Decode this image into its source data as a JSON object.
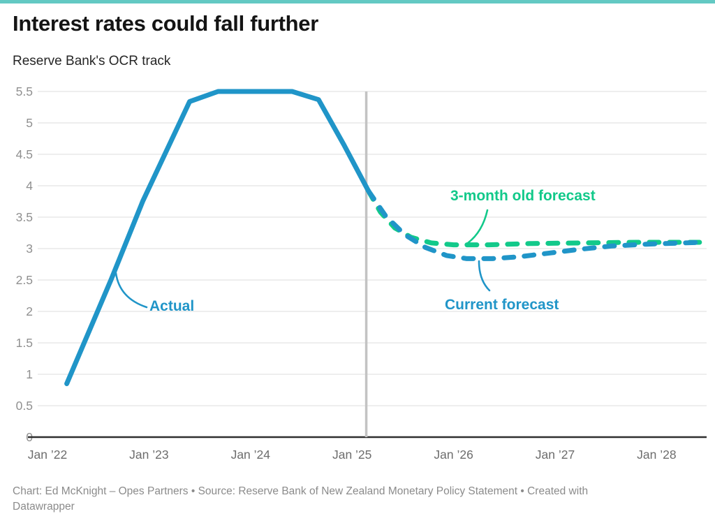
{
  "accent_color": "#63c9c3",
  "header": {
    "title": "Interest rates could fall further",
    "subtitle": "Reserve Bank's OCR track"
  },
  "footer": {
    "attribution": "Chart: Ed McKnight – Opes Partners • Source: Reserve Bank of New Zealand Monetary Policy Statement • Created with Datawrapper"
  },
  "chart_data": {
    "type": "line",
    "title": "Interest rates could fall further",
    "subtitle": "Reserve Bank's OCR track",
    "xlabel": "",
    "ylabel": "",
    "x_unit": "decimal_years",
    "xlim": [
      2021.95,
      2028.55
    ],
    "ylim": [
      0,
      5.5
    ],
    "grid": "horizontal",
    "y_ticks": [
      0,
      0.5,
      1,
      1.5,
      2,
      2.5,
      3,
      3.5,
      4,
      4.5,
      5,
      5.5
    ],
    "x_ticks": [
      {
        "value": 2022,
        "label": "Jan ’22"
      },
      {
        "value": 2023,
        "label": "Jan ’23"
      },
      {
        "value": 2024,
        "label": "Jan ’24"
      },
      {
        "value": 2025,
        "label": "Jan ’25"
      },
      {
        "value": 2026,
        "label": "Jan ’26"
      },
      {
        "value": 2027,
        "label": "Jan ’27"
      },
      {
        "value": 2028,
        "label": "Jan ’28"
      }
    ],
    "forecast_divider_x": 2025.14,
    "series": [
      {
        "name": "Actual",
        "color": "#2095c8",
        "style": "solid",
        "points": [
          [
            2022.19,
            0.85
          ],
          [
            2022.63,
            2.52
          ],
          [
            2022.94,
            3.76
          ],
          [
            2023.4,
            5.34
          ],
          [
            2023.68,
            5.5
          ],
          [
            2024.41,
            5.5
          ],
          [
            2024.67,
            5.37
          ],
          [
            2024.92,
            4.65
          ],
          [
            2025.16,
            3.92
          ]
        ]
      },
      {
        "name": "3-month old forecast",
        "color": "#12c98a",
        "style": "dashed",
        "points": [
          [
            2025.16,
            3.92
          ],
          [
            2025.28,
            3.58
          ],
          [
            2025.42,
            3.33
          ],
          [
            2025.58,
            3.18
          ],
          [
            2025.78,
            3.09
          ],
          [
            2026.0,
            3.06
          ],
          [
            2026.35,
            3.06
          ],
          [
            2026.75,
            3.08
          ],
          [
            2027.25,
            3.09
          ],
          [
            2027.8,
            3.1
          ],
          [
            2028.45,
            3.1
          ]
        ]
      },
      {
        "name": "Current forecast",
        "color": "#2095c8",
        "style": "dashed",
        "points": [
          [
            2025.16,
            3.92
          ],
          [
            2025.33,
            3.52
          ],
          [
            2025.52,
            3.22
          ],
          [
            2025.72,
            3.02
          ],
          [
            2025.93,
            2.89
          ],
          [
            2026.13,
            2.84
          ],
          [
            2026.38,
            2.84
          ],
          [
            2026.65,
            2.87
          ],
          [
            2026.95,
            2.93
          ],
          [
            2027.25,
            2.99
          ],
          [
            2027.55,
            3.04
          ],
          [
            2027.9,
            3.07
          ],
          [
            2028.45,
            3.1
          ]
        ]
      }
    ],
    "annotations": [
      {
        "label": "Actual",
        "color": "#2095c8"
      },
      {
        "label": "3-month old forecast",
        "color": "#12c98a"
      },
      {
        "label": "Current forecast",
        "color": "#2095c8"
      }
    ],
    "style": {
      "grid_color": "#e9e9e9",
      "axis_color": "#2f2f2f",
      "divider_color": "#c3c3c3",
      "y_tick_color": "#909090",
      "x_tick_color": "#6d6d6d"
    }
  }
}
